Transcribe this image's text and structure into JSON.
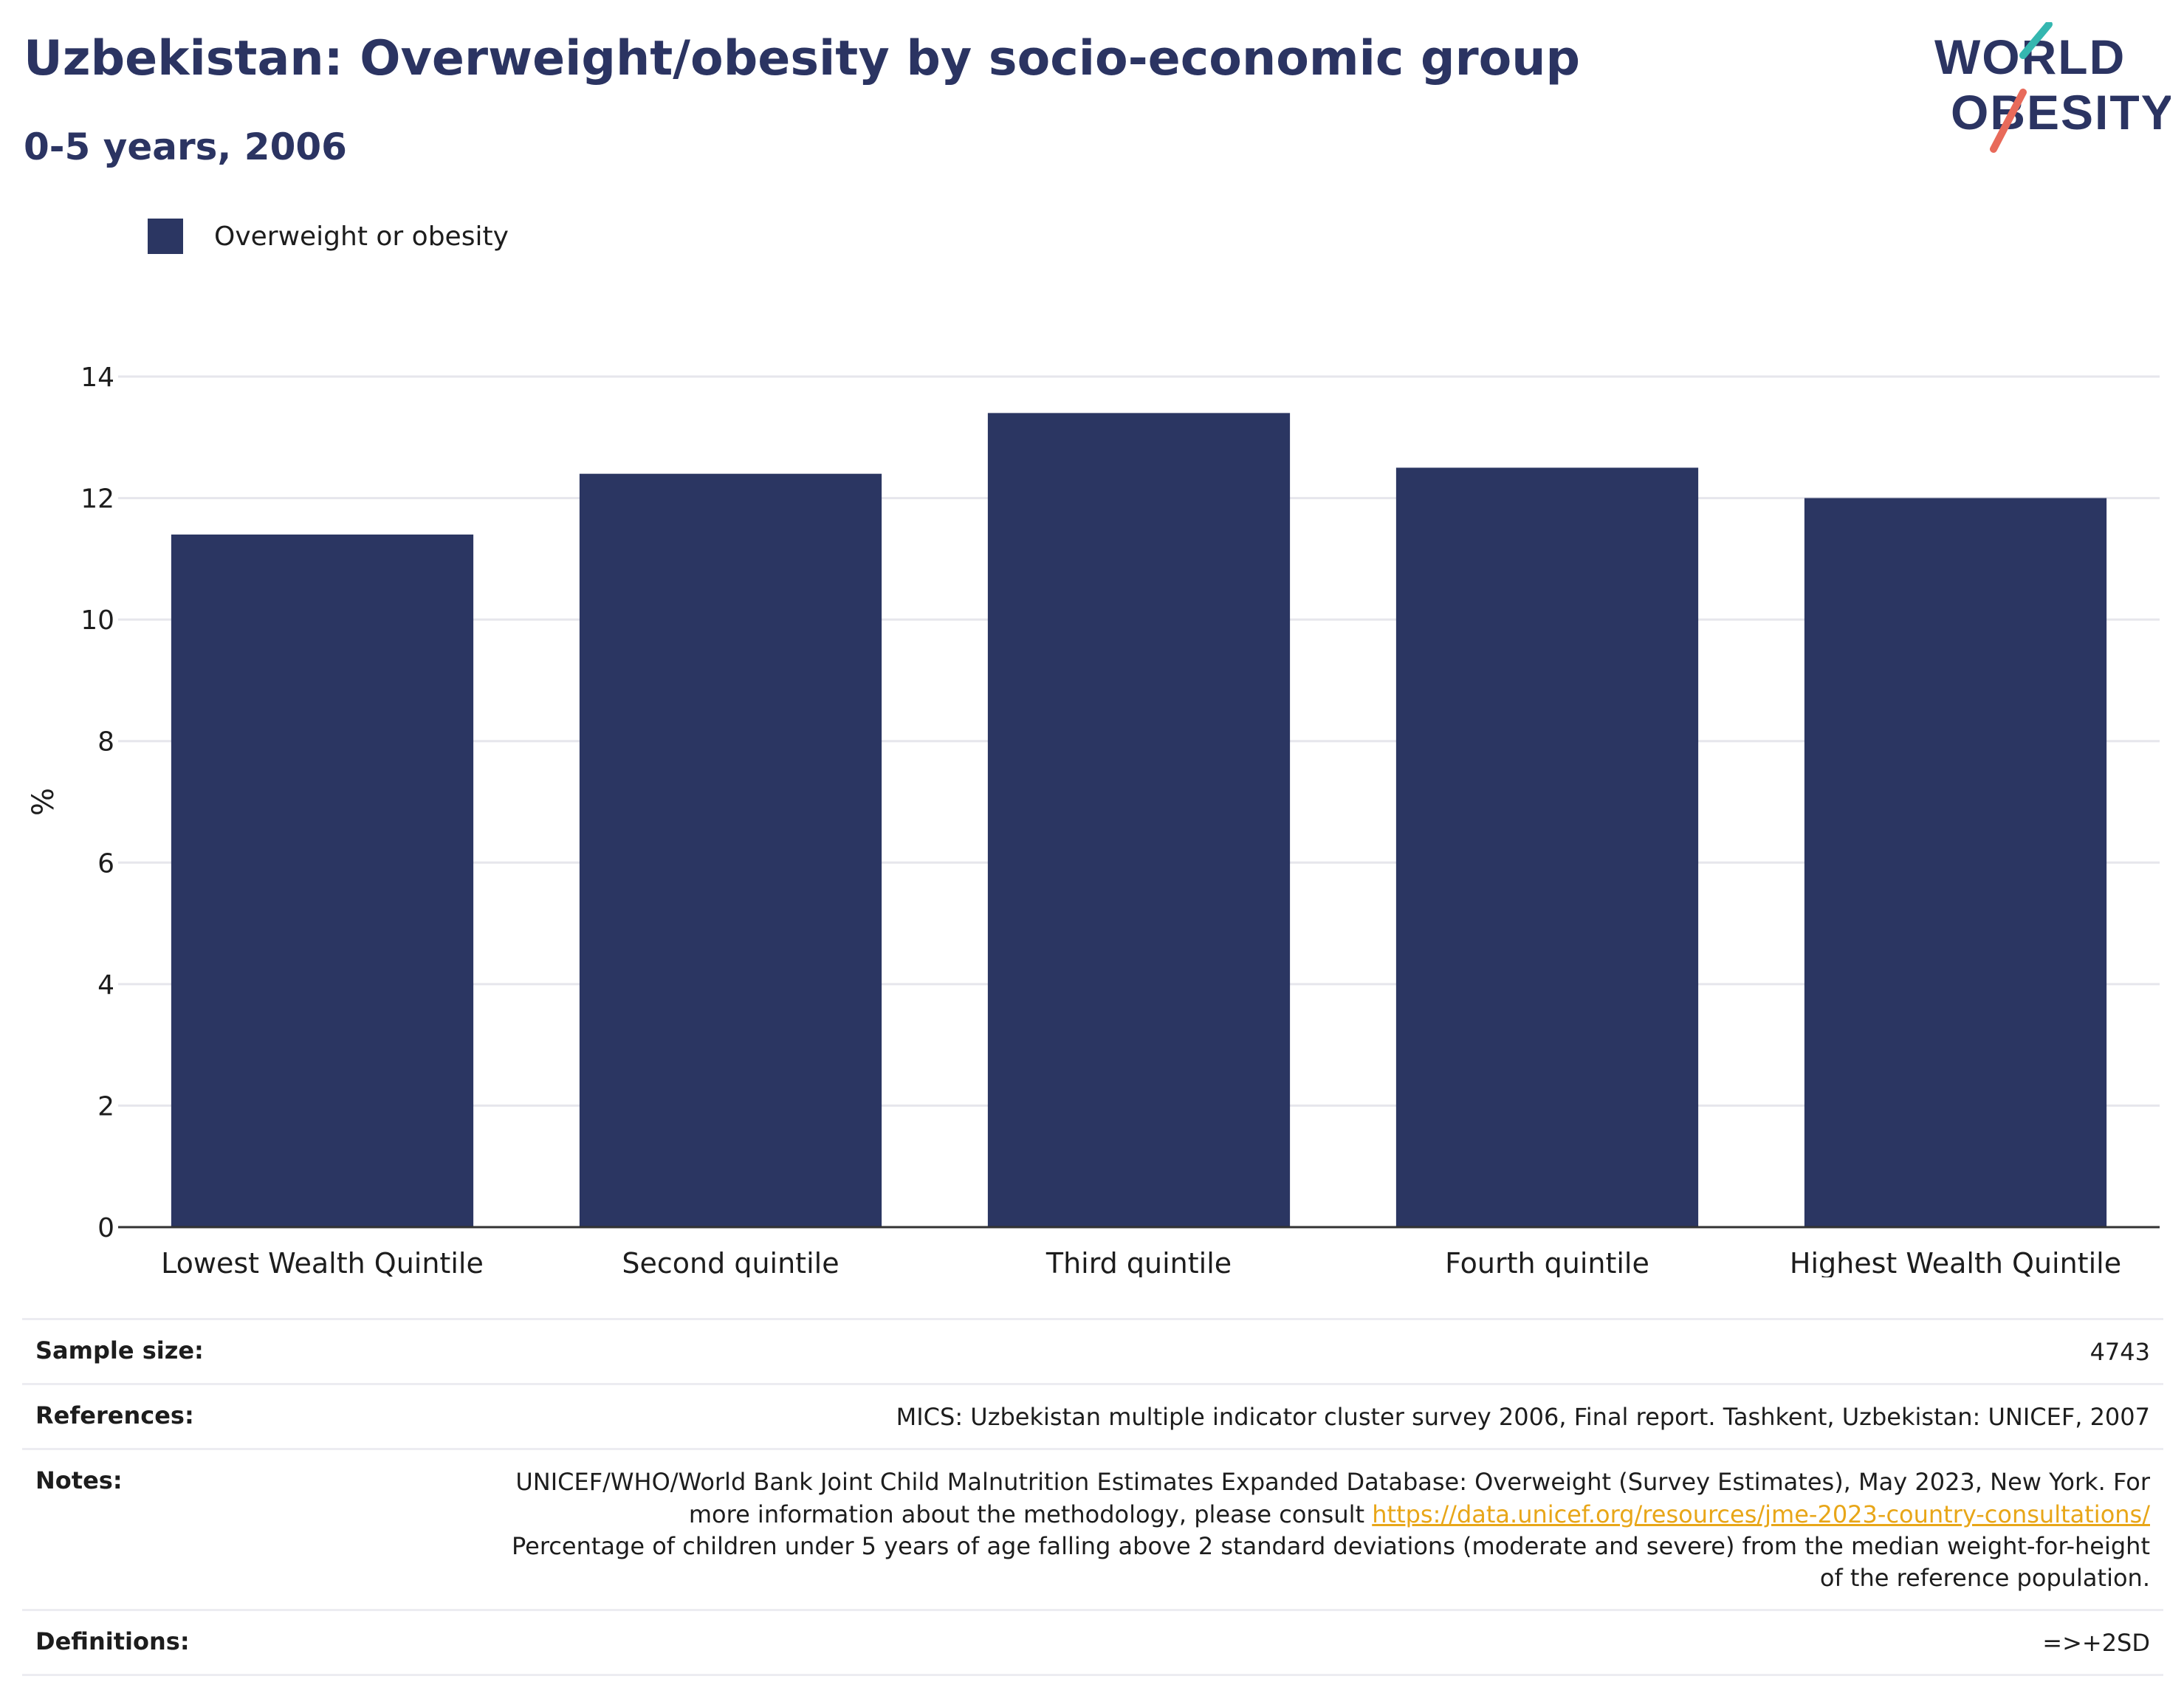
{
  "header": {
    "title": "Uzbekistan: Overweight/obesity by socio-economic group",
    "subtitle": "0-5 years, 2006"
  },
  "logo": {
    "line1": "WORLD",
    "line2": "OBESITY",
    "colors": {
      "text": "#2b3462",
      "teal": "#35b7b0",
      "coral": "#e86a5a"
    }
  },
  "colors": {
    "bar": "#2b3662",
    "grid": "#e6e6ec",
    "axis": "#333333"
  },
  "chart_data": {
    "type": "bar",
    "categories": [
      "Lowest Wealth Quintile",
      "Second quintile",
      "Third quintile",
      "Fourth quintile",
      "Highest Wealth Quintile"
    ],
    "series": [
      {
        "name": "Overweight or obesity",
        "values": [
          11.4,
          12.4,
          13.4,
          12.5,
          12.0
        ]
      }
    ],
    "ylabel": "%",
    "ylim": [
      0,
      14
    ],
    "yticks": [
      0,
      2,
      4,
      6,
      8,
      10,
      12,
      14
    ],
    "grid": true,
    "legend": "top-left"
  },
  "info": {
    "sample_size": {
      "label": "Sample size:",
      "value": "4743"
    },
    "references": {
      "label": "References:",
      "value": "MICS: Uzbekistan multiple indicator cluster survey 2006, Final report. Tashkent, Uzbekistan: UNICEF, 2007"
    },
    "notes": {
      "label": "Notes:",
      "text1": "UNICEF/WHO/World Bank Joint Child Malnutrition Estimates Expanded Database: Overweight (Survey Estimates), May 2023, New York. For more information about the methodology, please consult ",
      "link": "https://data.unicef.org/resources/jme-2023-country-consultations/",
      "text2": "Percentage of children under 5 years of age falling above 2 standard deviations (moderate and severe) from the median weight-for-height of the reference population."
    },
    "definitions": {
      "label": "Definitions:",
      "value": "=>+2SD"
    }
  }
}
